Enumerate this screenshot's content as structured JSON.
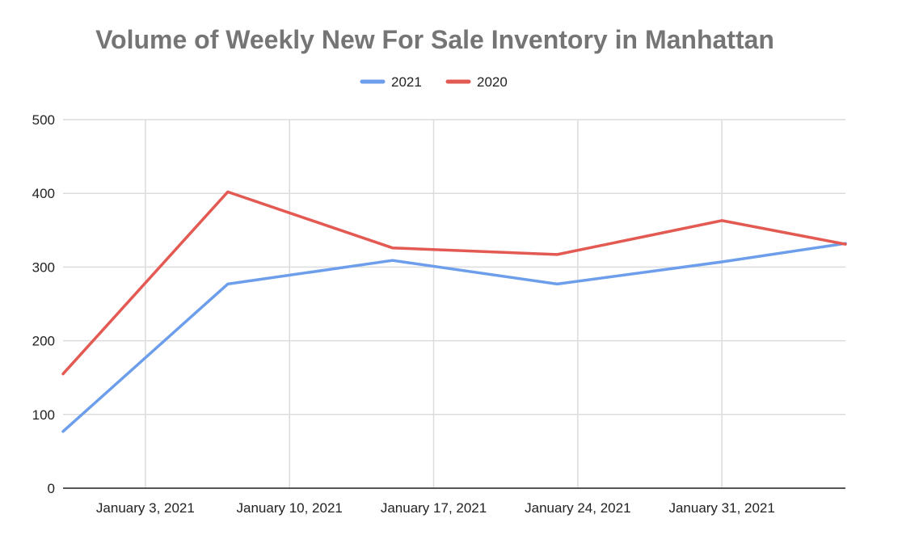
{
  "chart_data": {
    "type": "line",
    "title": "Volume of Weekly New For Sale Inventory in Manhattan",
    "xlabel": "",
    "ylabel": "",
    "x": [
      "2020-12-30",
      "2021-01-07",
      "2021-01-15",
      "2021-01-23",
      "2021-01-31",
      "2021-02-06"
    ],
    "x_ticks": [
      "January 3, 2021",
      "January 10, 2021",
      "January 17, 2021",
      "January 24, 2021",
      "January 31, 2021"
    ],
    "y_ticks": [
      0,
      100,
      200,
      300,
      400,
      500
    ],
    "ylim": [
      0,
      500
    ],
    "grid": true,
    "legend_position": "top",
    "series": [
      {
        "name": "2021",
        "color": "#6d9eeb",
        "values": [
          77,
          277,
          309,
          277,
          307,
          332
        ]
      },
      {
        "name": "2020",
        "color": "#e35a53",
        "values": [
          155,
          402,
          326,
          317,
          363,
          331
        ]
      }
    ]
  }
}
